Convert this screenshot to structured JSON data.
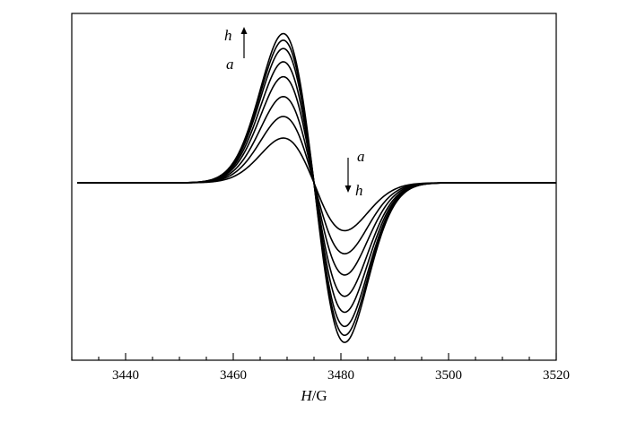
{
  "chart_data": {
    "type": "line",
    "title": "",
    "xlabel_italic": "H",
    "xlabel_unit": "/G",
    "ylabel": "",
    "xlim": [
      3430,
      3520
    ],
    "ylim": [
      -1.0,
      1.0
    ],
    "xticks": [
      "3440",
      "3460",
      "3480",
      "3500",
      "3520"
    ],
    "grid": false,
    "legend": "none",
    "annotations": {
      "left_top": "h",
      "left_bottom": "a",
      "right_top": "a",
      "right_bottom": "h"
    },
    "lineshape": {
      "center": 3475,
      "sigma": 5.7,
      "baseline_from": 3431,
      "baseline_to": 3520
    },
    "series": [
      {
        "values_peak": 0.27,
        "peak_x": 3469,
        "trough_x": 3481
      },
      {
        "values_peak": 0.4,
        "peak_x": 3469,
        "trough_x": 3481
      },
      {
        "values_peak": 0.52,
        "peak_x": 3469,
        "trough_x": 3481
      },
      {
        "values_peak": 0.64,
        "peak_x": 3469,
        "trough_x": 3481
      },
      {
        "values_peak": 0.73,
        "peak_x": 3469,
        "trough_x": 3481
      },
      {
        "values_peak": 0.81,
        "peak_x": 3469,
        "trough_x": 3481
      },
      {
        "values_peak": 0.86,
        "peak_x": 3469,
        "trough_x": 3481
      },
      {
        "values_peak": 0.9,
        "peak_x": 3469,
        "trough_x": 3481
      }
    ]
  }
}
